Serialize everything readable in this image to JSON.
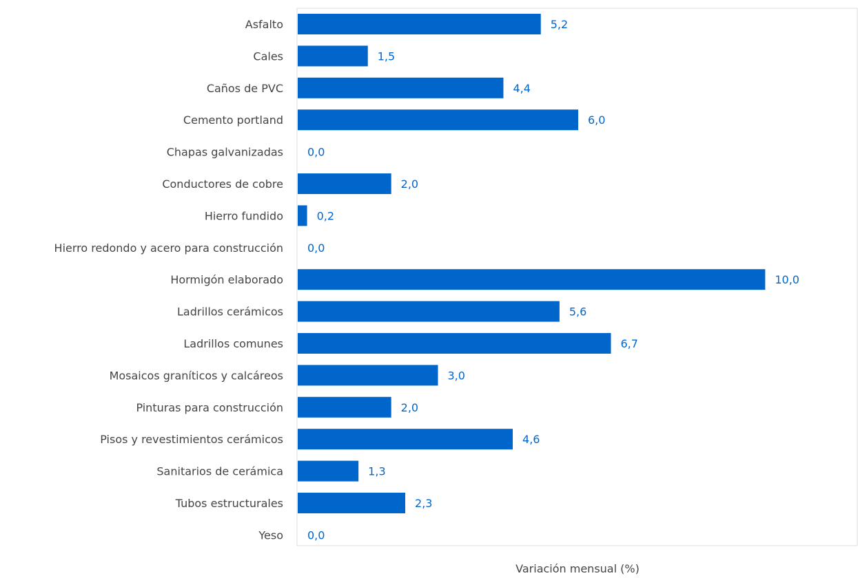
{
  "colors": {
    "bar": "#0066CC",
    "value_label": "#0066CC",
    "grid": "#dcdcdc",
    "text": "#444444"
  },
  "chart_data": {
    "type": "bar",
    "orientation": "horizontal",
    "categories": [
      "Asfalto",
      "Cales",
      "Caños de PVC",
      "Cemento portland",
      "Chapas galvanizadas",
      "Conductores de cobre",
      "Hierro fundido",
      "Hierro redondo y acero para construcción",
      "Hormigón elaborado",
      "Ladrillos cerámicos",
      "Ladrillos comunes",
      "Mosaicos graníticos y calcáreos",
      "Pinturas para construcción",
      "Pisos y revestimientos cerámicos",
      "Sanitarios de cerámica",
      "Tubos estructurales",
      "Yeso"
    ],
    "values": [
      5.2,
      1.5,
      4.4,
      6.0,
      0.0,
      2.0,
      0.2,
      0.0,
      10.0,
      5.6,
      6.7,
      3.0,
      2.0,
      4.6,
      1.3,
      2.3,
      0.0
    ],
    "value_labels": [
      "5,2",
      "1,5",
      "4,4",
      "6,0",
      "0,0",
      "2,0",
      "0,2",
      "0,0",
      "10,0",
      "5,6",
      "6,7",
      "3,0",
      "2,0",
      "4,6",
      "1,3",
      "2,3",
      "0,0"
    ],
    "title": "",
    "xlabel": "Variación mensual (%)",
    "ylabel": "",
    "xlim": [
      0,
      12
    ],
    "grid": true,
    "legend": "none"
  }
}
